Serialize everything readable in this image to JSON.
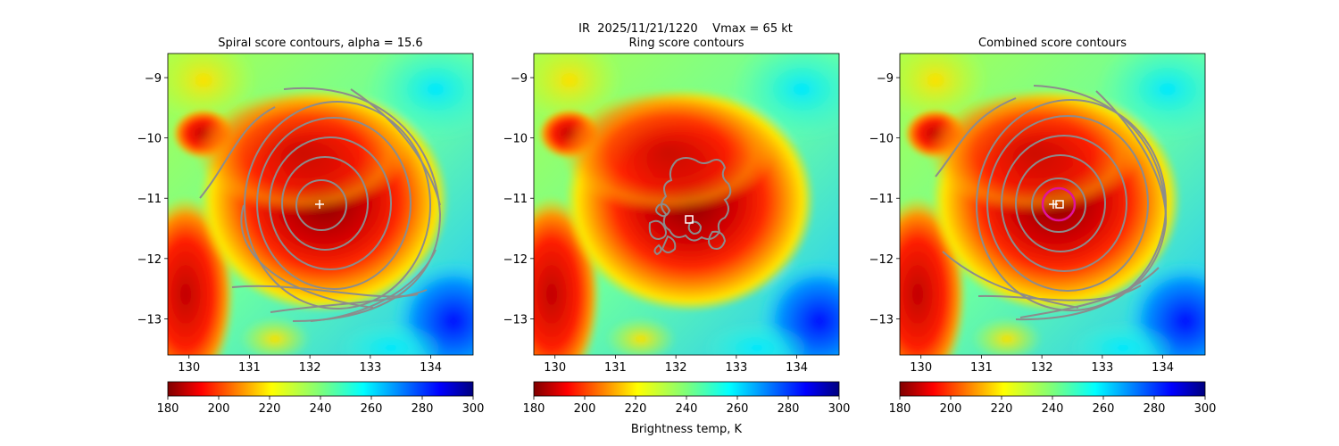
{
  "figure": {
    "suptitle_line1": "IR  2025/11/21/1220    Vmax = 65 kt",
    "colorbar_label": "Brightness temp, K"
  },
  "chart_data": [
    {
      "type": "heatmap",
      "title": "Spiral score contours, alpha = 15.6",
      "xlim": [
        129.65,
        134.7
      ],
      "ylim": [
        -13.6,
        -8.6
      ],
      "xticks": [
        130,
        131,
        132,
        133,
        134
      ],
      "yticks": [
        -9,
        -10,
        -11,
        -12,
        -13
      ],
      "xtick_labels": [
        "130",
        "131",
        "132",
        "133",
        "134"
      ],
      "ytick_labels": [
        "−9",
        "−10",
        "−11",
        "−12",
        "−13"
      ],
      "colorbar": {
        "cmap": "jet_r",
        "range": [
          180,
          300
        ],
        "ticks": [
          180,
          200,
          220,
          240,
          260,
          280,
          300
        ],
        "tick_labels": [
          "180",
          "200",
          "220",
          "240",
          "260",
          "280",
          "300"
        ]
      },
      "contours": "spiral score (gray)",
      "center_marker": {
        "symbol": "plus",
        "lon": 132.1,
        "lat": -11.1
      }
    },
    {
      "type": "heatmap",
      "title": "Ring score contours",
      "xlim": [
        129.65,
        134.7
      ],
      "ylim": [
        -13.6,
        -8.6
      ],
      "xticks": [
        130,
        131,
        132,
        133,
        134
      ],
      "yticks": [
        -9,
        -10,
        -11,
        -12,
        -13
      ],
      "xtick_labels": [
        "130",
        "131",
        "132",
        "133",
        "134"
      ],
      "ytick_labels": [
        "−9",
        "−10",
        "−11",
        "−12",
        "−13"
      ],
      "colorbar": {
        "cmap": "jet_r",
        "range": [
          180,
          300
        ],
        "ticks": [
          180,
          200,
          220,
          240,
          260,
          280,
          300
        ],
        "tick_labels": [
          "180",
          "200",
          "220",
          "240",
          "260",
          "280",
          "300"
        ]
      },
      "contours": "ring score (gray)",
      "center_marker": {
        "symbol": "square",
        "lon": 132.2,
        "lat": -11.35
      }
    },
    {
      "type": "heatmap",
      "title": "Combined score contours",
      "xlim": [
        129.65,
        134.7
      ],
      "ylim": [
        -13.6,
        -8.6
      ],
      "xticks": [
        130,
        131,
        132,
        133,
        134
      ],
      "yticks": [
        -9,
        -10,
        -11,
        -12,
        -13
      ],
      "xtick_labels": [
        "130",
        "131",
        "132",
        "133",
        "134"
      ],
      "ytick_labels": [
        "−9",
        "−10",
        "−11",
        "−12",
        "−13"
      ],
      "colorbar": {
        "cmap": "jet_r",
        "range": [
          180,
          300
        ],
        "ticks": [
          180,
          200,
          220,
          240,
          260,
          280,
          300
        ],
        "tick_labels": [
          "180",
          "200",
          "220",
          "240",
          "260",
          "280",
          "300"
        ]
      },
      "contours": "combined score (gray)",
      "center_marker": {
        "symbol": "plus",
        "lon": 132.15,
        "lat": -11.1
      },
      "secondary_marker": {
        "symbol": "square",
        "lon": 132.28,
        "lat": -11.1
      },
      "highlight_ring": {
        "color": "#e0139e",
        "lon": 132.28,
        "lat": -11.1
      }
    }
  ],
  "colors": {
    "contour": "#8c8c8c",
    "marker": "#ffffff",
    "ring": "#e0139e"
  }
}
